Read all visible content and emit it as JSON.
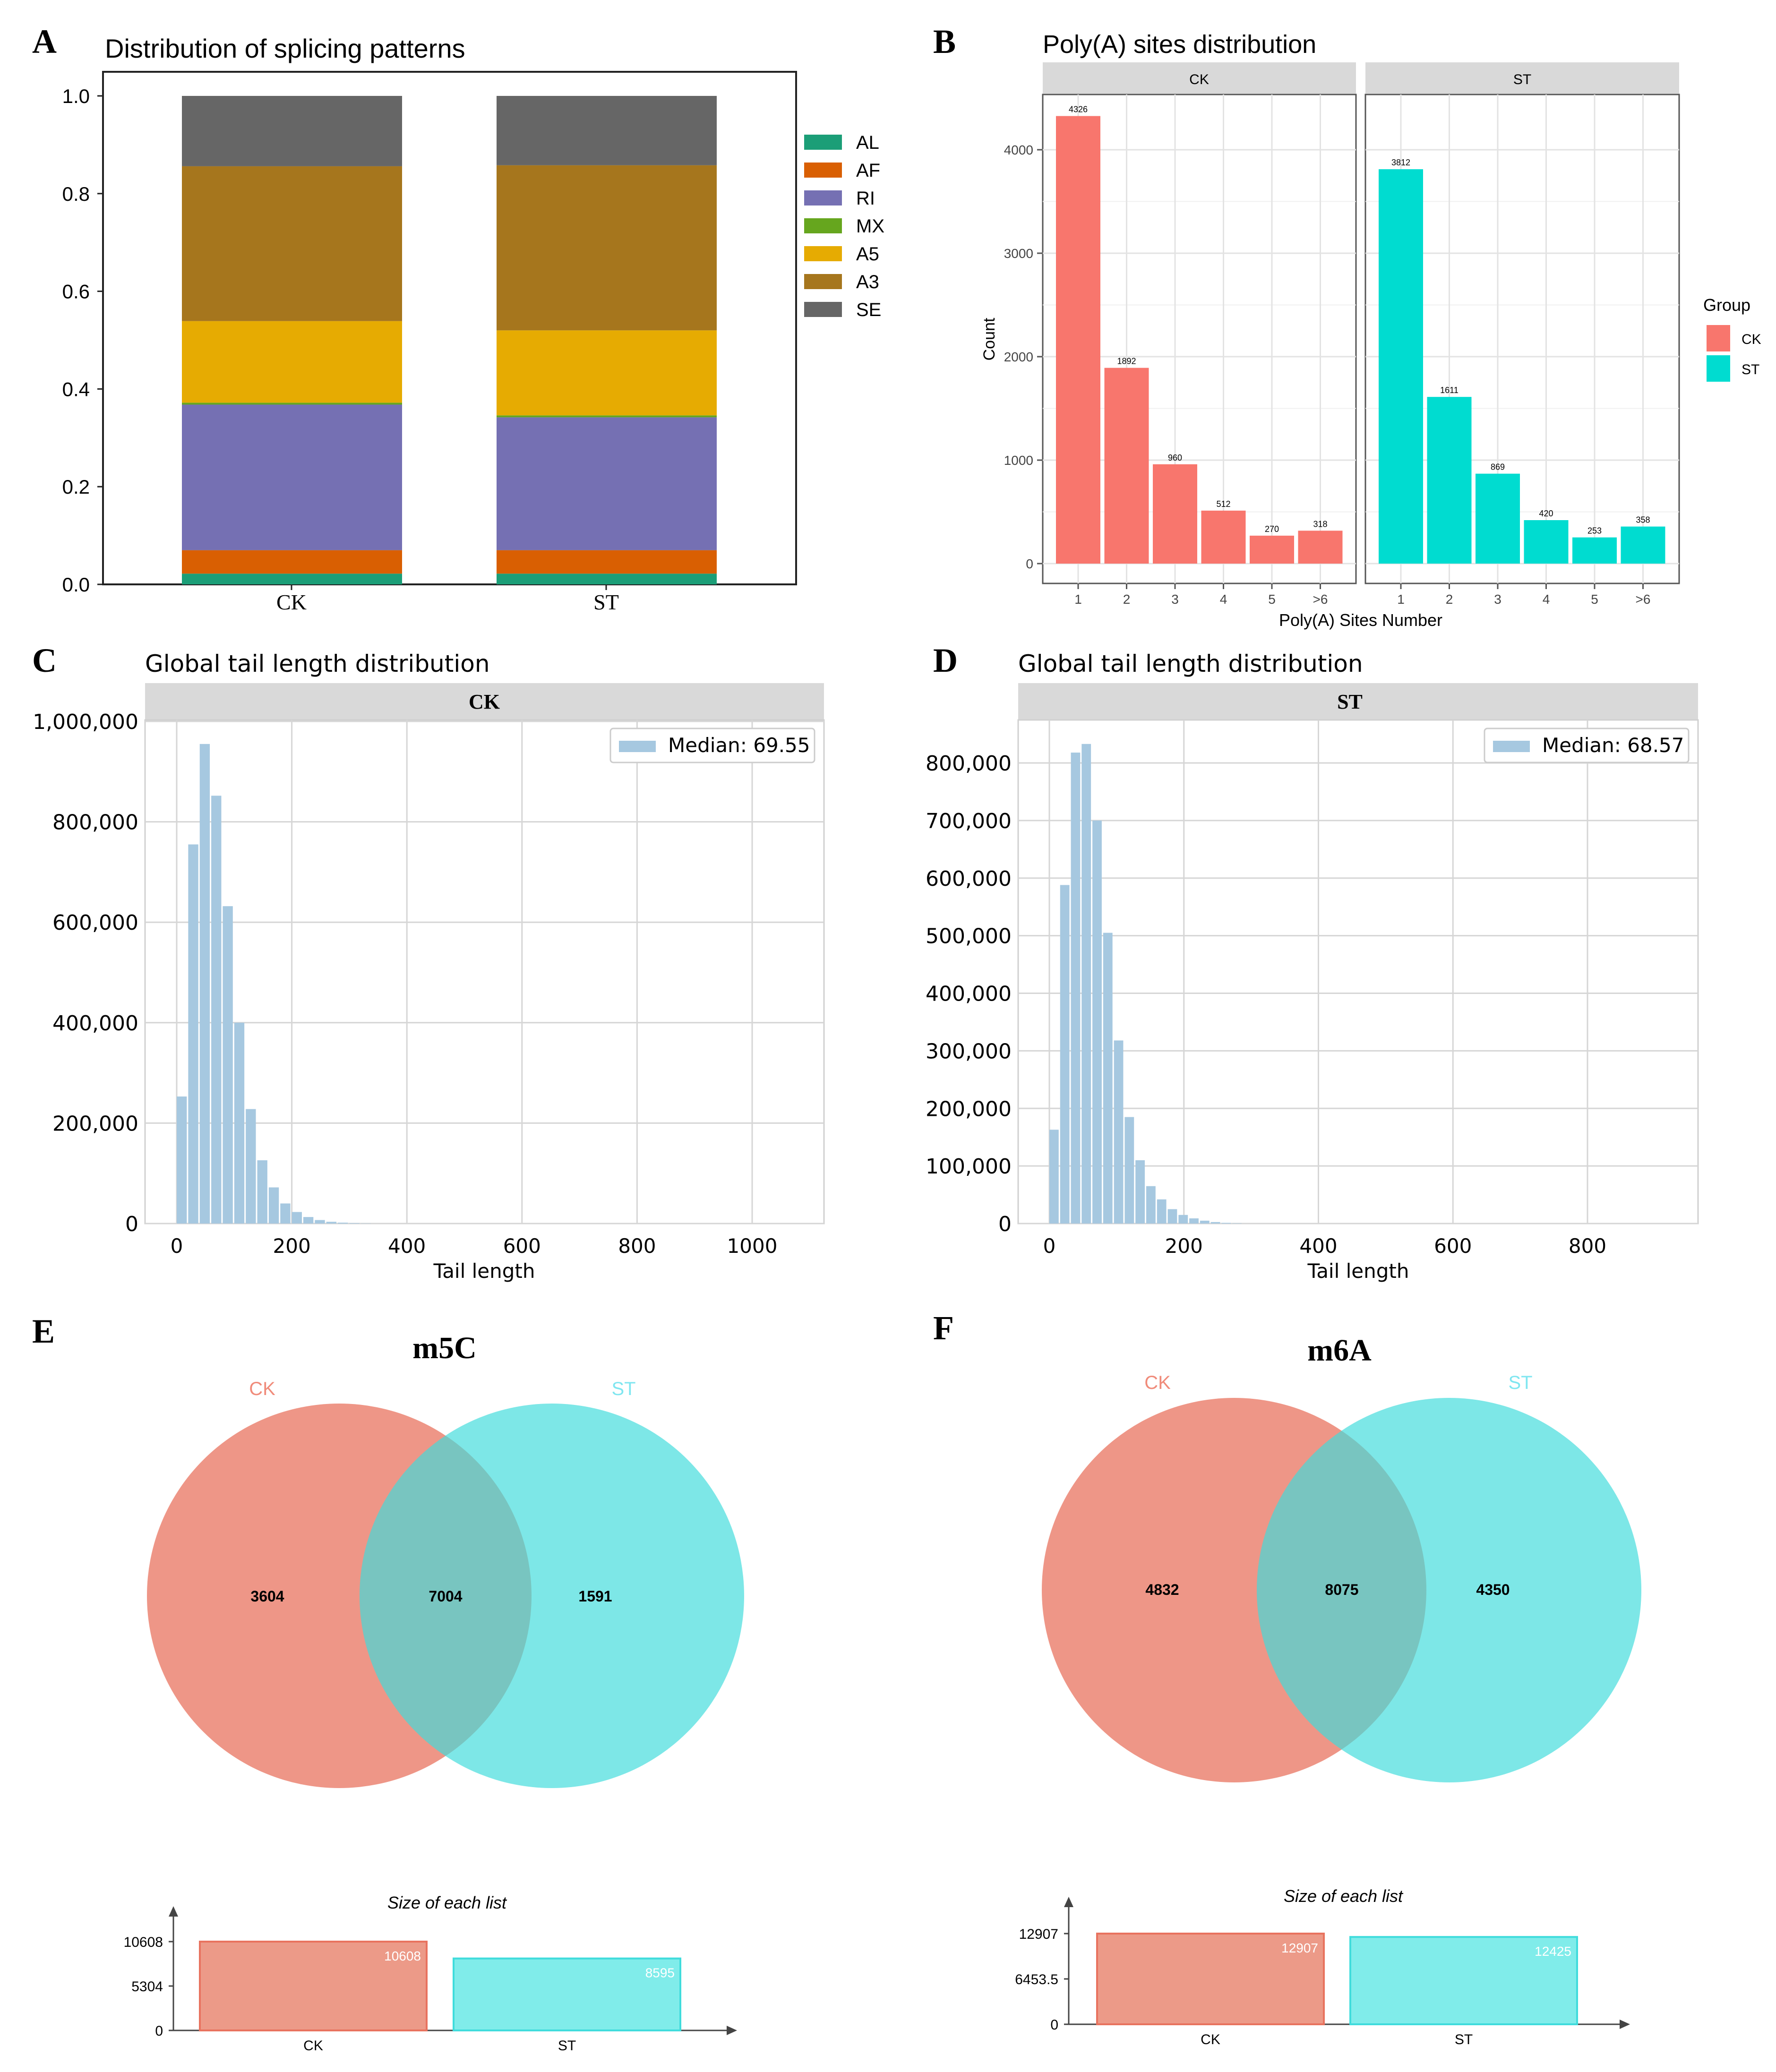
{
  "panel_letters": [
    "A",
    "B",
    "C",
    "D",
    "E",
    "F"
  ],
  "colors": {
    "AL": "#1b9e77",
    "AF": "#d95f02",
    "RI": "#7570b3",
    "MX": "#66a61e",
    "A5": "#e6ab02",
    "A3": "#a6761d",
    "SE": "#666666",
    "ck_bar": "#f8766d",
    "st_bar": "#00dcd0",
    "hist": "#a6c8e0",
    "venn_ck": "#e8735f",
    "venn_st": "#40dcdc",
    "venn_ck_label": "#f08b7a",
    "venn_st_label": "#7fe6f0"
  },
  "chart_data": [
    {
      "id": "A",
      "type": "bar",
      "stacked": true,
      "title": "Distribution of splicing patterns",
      "categories": [
        "CK",
        "ST"
      ],
      "ylim": [
        0,
        1.0
      ],
      "yticks": [
        "0.0",
        "0.2",
        "0.4",
        "0.6",
        "0.8",
        "1.0"
      ],
      "series": [
        {
          "name": "AL",
          "values": [
            0.022,
            0.022
          ]
        },
        {
          "name": "AF",
          "values": [
            0.048,
            0.048
          ]
        },
        {
          "name": "RI",
          "values": [
            0.298,
            0.272
          ]
        },
        {
          "name": "MX",
          "values": [
            0.004,
            0.004
          ]
        },
        {
          "name": "A5",
          "values": [
            0.167,
            0.174
          ]
        },
        {
          "name": "A3",
          "values": [
            0.317,
            0.338
          ]
        },
        {
          "name": "SE",
          "values": [
            0.144,
            0.142
          ]
        }
      ]
    },
    {
      "id": "B",
      "type": "bar",
      "faceted": true,
      "title": "Poly(A) sites distribution",
      "xlabel": "Poly(A) Sites Number",
      "ylabel": "Count",
      "categories": [
        "1",
        "2",
        "3",
        "4",
        "5",
        ">6"
      ],
      "ylim": [
        0,
        4500
      ],
      "yticks": [
        "0",
        "1000",
        "2000",
        "3000",
        "4000"
      ],
      "legend_title": "Group",
      "facets": [
        {
          "name": "CK",
          "values": [
            4326,
            1892,
            960,
            512,
            270,
            318
          ]
        },
        {
          "name": "ST",
          "values": [
            3812,
            1611,
            869,
            420,
            253,
            358
          ]
        }
      ]
    },
    {
      "id": "C",
      "type": "bar",
      "histogram": true,
      "title": "Global tail length distribution",
      "facet": "CK",
      "xlabel": "Tail length",
      "legend": "Median: 69.55",
      "xlim": [
        -25,
        1100
      ],
      "ylim": [
        0,
        1000000
      ],
      "xticks": [
        "0",
        "200",
        "400",
        "600",
        "800",
        "1000"
      ],
      "yticks": [
        "0",
        "200,000",
        "400,000",
        "600,000",
        "800,000",
        "1,000,000"
      ],
      "bin_width": 20,
      "bin_starts": [
        0,
        20,
        40,
        60,
        80,
        100,
        120,
        140,
        160,
        180,
        200,
        220,
        240,
        260,
        280,
        300,
        320
      ],
      "values": [
        253000,
        755000,
        955000,
        852000,
        632000,
        400000,
        228000,
        126000,
        72000,
        40000,
        23000,
        13000,
        7000,
        3500,
        1800,
        900,
        400
      ]
    },
    {
      "id": "D",
      "type": "bar",
      "histogram": true,
      "title": "Global tail length distribution",
      "facet": "ST",
      "xlabel": "Tail length",
      "legend": "Median: 68.57",
      "xlim": [
        -25,
        960
      ],
      "ylim": [
        0,
        850000
      ],
      "xticks": [
        "0",
        "200",
        "400",
        "600",
        "800"
      ],
      "yticks": [
        "0",
        "100,000",
        "200,000",
        "300,000",
        "400,000",
        "500,000",
        "600,000",
        "700,000",
        "800,000"
      ],
      "bin_width": 16,
      "bin_starts": [
        0,
        16,
        32,
        48,
        64,
        80,
        96,
        112,
        128,
        144,
        160,
        176,
        192,
        208,
        224,
        240,
        256,
        272
      ],
      "values": [
        163000,
        588000,
        818000,
        833000,
        700000,
        505000,
        318000,
        185000,
        110000,
        65000,
        42000,
        25000,
        15000,
        9000,
        5000,
        2600,
        1200,
        500
      ]
    },
    {
      "id": "E",
      "type": "venn",
      "title": "m5C",
      "sets": [
        "CK",
        "ST"
      ],
      "only_a": "3604",
      "both": "7004",
      "only_b": "1591",
      "sizes_title": "Size of each list",
      "sizes": [
        10608,
        8595
      ],
      "size_labels": [
        "10608",
        "8595"
      ],
      "size_ticks": [
        "0",
        "5304",
        "10608"
      ],
      "ylim": [
        0,
        10608
      ]
    },
    {
      "id": "F",
      "type": "venn",
      "title": "m6A",
      "sets": [
        "CK",
        "ST"
      ],
      "only_a": "4832",
      "both": "8075",
      "only_b": "4350",
      "sizes_title": "Size of each list",
      "sizes": [
        12907,
        12425
      ],
      "size_labels": [
        "12907",
        "12425"
      ],
      "size_ticks": [
        "0",
        "6453.5",
        "12907"
      ],
      "ylim": [
        0,
        12907
      ]
    }
  ]
}
